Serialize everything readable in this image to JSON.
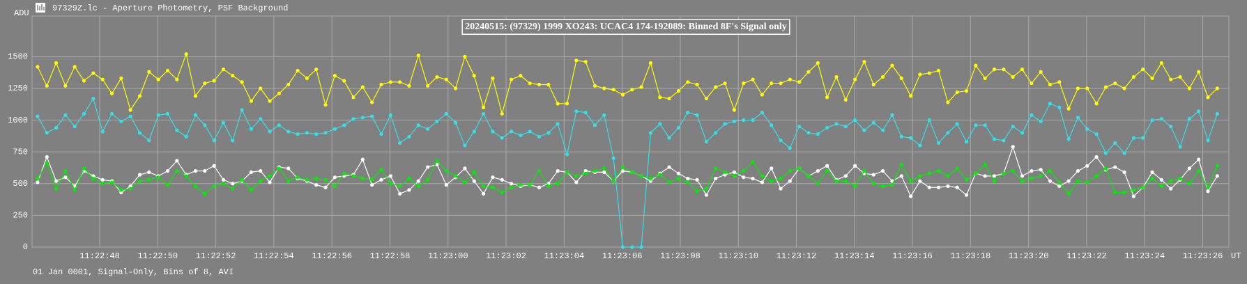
{
  "header": {
    "title": "97329Z.lc - Aperture Photometry, PSF Background"
  },
  "footer": {
    "text": "01 Jan 0001, Signal-Only, Bins of 8, AVI"
  },
  "chart_data": {
    "type": "line",
    "title": "20240515: (97329) 1999 XO243: UCAC4 174-192089: Binned 8F's Signal only",
    "ylabel": "ADU",
    "xlabel": "UT",
    "grid": true,
    "xlim": [
      45.67,
      86.9
    ],
    "ylim": [
      0,
      1820
    ],
    "yticks": [
      0,
      250,
      500,
      750,
      1000,
      1250,
      1500
    ],
    "xticks": [
      {
        "value": 48,
        "label": "11:22:48"
      },
      {
        "value": 50,
        "label": "11:22:50"
      },
      {
        "value": 52,
        "label": "11:22:52"
      },
      {
        "value": 54,
        "label": "11:22:54"
      },
      {
        "value": 56,
        "label": "11:22:56"
      },
      {
        "value": 58,
        "label": "11:22:58"
      },
      {
        "value": 60,
        "label": "11:23:00"
      },
      {
        "value": 62,
        "label": "11:23:02"
      },
      {
        "value": 64,
        "label": "11:23:04"
      },
      {
        "value": 66,
        "label": "11:23:06"
      },
      {
        "value": 68,
        "label": "11:23:08"
      },
      {
        "value": 70,
        "label": "11:23:10"
      },
      {
        "value": 72,
        "label": "11:23:12"
      },
      {
        "value": 74,
        "label": "11:23:14"
      },
      {
        "value": 76,
        "label": "11:23:16"
      },
      {
        "value": 78,
        "label": "11:23:18"
      },
      {
        "value": 80,
        "label": "11:23:20"
      },
      {
        "value": 82,
        "label": "11:23:22"
      },
      {
        "value": 84,
        "label": "11:23:24"
      },
      {
        "value": 86,
        "label": "11:23:26"
      }
    ],
    "x": [
      45.86,
      46.18,
      46.5,
      46.82,
      47.14,
      47.46,
      47.78,
      48.1,
      48.42,
      48.74,
      49.06,
      49.38,
      49.7,
      50.02,
      50.34,
      50.66,
      50.98,
      51.3,
      51.62,
      51.94,
      52.26,
      52.58,
      52.9,
      53.22,
      53.54,
      53.86,
      54.18,
      54.5,
      54.82,
      55.14,
      55.46,
      55.78,
      56.1,
      56.42,
      56.74,
      57.06,
      57.38,
      57.7,
      58.02,
      58.34,
      58.66,
      58.98,
      59.3,
      59.62,
      59.94,
      60.26,
      60.58,
      60.9,
      61.22,
      61.54,
      61.86,
      62.18,
      62.5,
      62.82,
      63.14,
      63.46,
      63.78,
      64.1,
      64.42,
      64.74,
      65.06,
      65.38,
      65.7,
      66.02,
      66.34,
      66.66,
      66.98,
      67.3,
      67.62,
      67.94,
      68.26,
      68.58,
      68.9,
      69.22,
      69.54,
      69.86,
      70.18,
      70.5,
      70.82,
      71.14,
      71.46,
      71.78,
      72.1,
      72.42,
      72.74,
      73.06,
      73.38,
      73.7,
      74.02,
      74.34,
      74.66,
      74.98,
      75.3,
      75.62,
      75.94,
      76.26,
      76.58,
      76.9,
      77.22,
      77.54,
      77.86,
      78.18,
      78.5,
      78.82,
      79.14,
      79.46,
      79.78,
      80.1,
      80.42,
      80.74,
      81.06,
      81.38,
      81.7,
      82.02,
      82.34,
      82.66,
      82.98,
      83.3,
      83.62,
      83.94,
      84.26,
      84.58,
      84.9,
      85.22,
      85.54,
      85.86,
      86.18,
      86.5
    ],
    "series": [
      {
        "color": "#ffff00",
        "values": [
          1420,
          1270,
          1450,
          1270,
          1420,
          1310,
          1370,
          1320,
          1210,
          1330,
          1080,
          1190,
          1380,
          1320,
          1390,
          1320,
          1520,
          1190,
          1290,
          1310,
          1400,
          1350,
          1300,
          1150,
          1250,
          1150,
          1210,
          1280,
          1390,
          1330,
          1400,
          1120,
          1350,
          1310,
          1180,
          1260,
          1140,
          1280,
          1300,
          1300,
          1270,
          1510,
          1270,
          1340,
          1320,
          1250,
          1500,
          1350,
          1100,
          1330,
          1050,
          1320,
          1350,
          1290,
          1280,
          1280,
          1130,
          1130,
          1470,
          1460,
          1270,
          1250,
          1240,
          1200,
          1240,
          1260,
          1450,
          1180,
          1170,
          1230,
          1300,
          1280,
          1170,
          1260,
          1290,
          1080,
          1290,
          1320,
          1200,
          1290,
          1290,
          1320,
          1300,
          1380,
          1450,
          1180,
          1340,
          1160,
          1320,
          1460,
          1280,
          1340,
          1430,
          1330,
          1190,
          1360,
          1370,
          1390,
          1140,
          1220,
          1230,
          1430,
          1330,
          1400,
          1400,
          1340,
          1400,
          1290,
          1380,
          1280,
          1300,
          1090,
          1250,
          1250,
          1130,
          1260,
          1290,
          1250,
          1340,
          1400,
          1330,
          1450,
          1320,
          1340,
          1250,
          1380,
          1180,
          1250
        ]
      },
      {
        "color": "#33e0e8",
        "values": [
          1030,
          900,
          940,
          1040,
          950,
          1050,
          1170,
          910,
          1050,
          990,
          1030,
          900,
          840,
          1040,
          1050,
          920,
          870,
          1040,
          960,
          840,
          980,
          840,
          1080,
          930,
          1010,
          910,
          960,
          910,
          890,
          900,
          890,
          900,
          930,
          960,
          1010,
          1020,
          1030,
          890,
          1040,
          820,
          870,
          960,
          930,
          990,
          1050,
          980,
          800,
          910,
          1050,
          910,
          860,
          910,
          880,
          910,
          870,
          900,
          970,
          730,
          1070,
          1060,
          960,
          1040,
          700,
          0,
          0,
          0,
          900,
          970,
          860,
          940,
          1060,
          1040,
          830,
          900,
          970,
          990,
          1000,
          1000,
          1060,
          960,
          840,
          780,
          950,
          900,
          890,
          940,
          970,
          950,
          1000,
          920,
          980,
          920,
          1040,
          870,
          860,
          800,
          1000,
          820,
          900,
          970,
          830,
          960,
          960,
          850,
          840,
          950,
          900,
          1040,
          990,
          1130,
          1100,
          850,
          1020,
          930,
          890,
          740,
          820,
          740,
          860,
          860,
          1000,
          1010,
          950,
          790,
          1010,
          1070,
          840,
          1050
        ]
      },
      {
        "color": "#ffffff",
        "values": [
          510,
          710,
          520,
          550,
          480,
          600,
          560,
          530,
          520,
          430,
          480,
          570,
          590,
          560,
          600,
          680,
          570,
          600,
          600,
          640,
          530,
          500,
          520,
          590,
          600,
          510,
          630,
          620,
          540,
          520,
          490,
          470,
          550,
          560,
          570,
          690,
          490,
          530,
          560,
          420,
          450,
          520,
          630,
          650,
          490,
          550,
          620,
          520,
          420,
          550,
          530,
          500,
          480,
          490,
          470,
          500,
          600,
          590,
          510,
          600,
          590,
          590,
          520,
          600,
          590,
          560,
          520,
          580,
          630,
          580,
          540,
          530,
          410,
          540,
          570,
          590,
          550,
          540,
          510,
          620,
          460,
          520,
          620,
          560,
          600,
          640,
          530,
          560,
          640,
          580,
          570,
          600,
          520,
          560,
          400,
          520,
          470,
          470,
          480,
          470,
          410,
          580,
          560,
          560,
          580,
          790,
          560,
          600,
          610,
          520,
          480,
          520,
          600,
          640,
          710,
          610,
          630,
          590,
          400,
          470,
          590,
          530,
          460,
          530,
          620,
          690,
          440,
          560
        ]
      },
      {
        "color": "#00ee00",
        "values": [
          540,
          660,
          460,
          600,
          450,
          620,
          540,
          500,
          510,
          450,
          460,
          520,
          530,
          550,
          490,
          600,
          560,
          480,
          420,
          480,
          500,
          460,
          530,
          450,
          520,
          560,
          620,
          520,
          550,
          530,
          540,
          530,
          480,
          580,
          560,
          540,
          530,
          610,
          500,
          480,
          540,
          480,
          530,
          680,
          600,
          560,
          510,
          590,
          480,
          470,
          430,
          470,
          490,
          490,
          600,
          480,
          500,
          590,
          560,
          580,
          600,
          620,
          520,
          630,
          590,
          560,
          540,
          570,
          510,
          540,
          510,
          440,
          460,
          620,
          590,
          560,
          600,
          670,
          560,
          520,
          540,
          600,
          620,
          560,
          500,
          600,
          520,
          520,
          480,
          600,
          500,
          480,
          490,
          650,
          520,
          560,
          580,
          600,
          560,
          620,
          530,
          580,
          650,
          520,
          580,
          600,
          520,
          540,
          560,
          600,
          510,
          420,
          520,
          510,
          560,
          620,
          430,
          430,
          450,
          470,
          540,
          480,
          520,
          540,
          500,
          600,
          470,
          640
        ]
      }
    ]
  }
}
